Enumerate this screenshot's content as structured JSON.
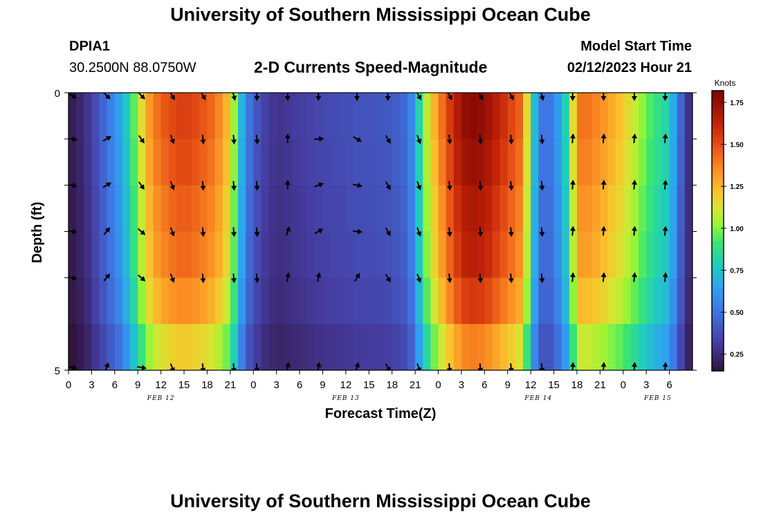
{
  "header": {
    "title": "University of Southern Mississippi Ocean Cube",
    "station": "DPIA1",
    "coordinates": "30.2500N  88.0750W",
    "subtitle": "2-D Currents Speed-Magnitude",
    "model_start_label": "Model Start Time",
    "model_start_value": "02/12/2023 Hour 21"
  },
  "footer": {
    "title": "University of Southern Mississippi Ocean Cube"
  },
  "chart_data": {
    "type": "heatmap",
    "title": "2-D Currents Speed-Magnitude",
    "xlabel": "Forecast Time(Z)",
    "ylabel": "Depth (ft)",
    "ylim": [
      0,
      5
    ],
    "y_tick_labels": [
      "0",
      "5"
    ],
    "x_hours_range": [
      0,
      81
    ],
    "x_tick_labels": [
      "0",
      "3",
      "6",
      "9",
      "12",
      "15",
      "18",
      "21",
      "0",
      "3",
      "6",
      "9",
      "12",
      "15",
      "18",
      "21",
      "0",
      "3",
      "6",
      "9",
      "12",
      "15",
      "18",
      "21",
      "0",
      "3",
      "6"
    ],
    "date_labels": [
      {
        "label": "FEB 12",
        "hour": 12
      },
      {
        "label": "FEB 13",
        "hour": 36
      },
      {
        "label": "FEB 14",
        "hour": 61
      },
      {
        "label": "FEB 15",
        "hour": 76.5
      }
    ],
    "colorbar": {
      "title": "Knots",
      "range": [
        0.15,
        1.82
      ],
      "ticks": [
        "0.25",
        "0.50",
        "0.75",
        "1.00",
        "1.25",
        "1.50",
        "1.75"
      ]
    },
    "speed_profile": {
      "hours": [
        0,
        2,
        5,
        7,
        8,
        9,
        10,
        11,
        12,
        13,
        15,
        17,
        19,
        21,
        22,
        23,
        25,
        27,
        30,
        33,
        36,
        38,
        40,
        42,
        44,
        45,
        46,
        48,
        50,
        51,
        52,
        54,
        56,
        59,
        60,
        61,
        62,
        63,
        64,
        65,
        66,
        67,
        69,
        72,
        74,
        76,
        78,
        79,
        80,
        81
      ],
      "knots": [
        0.18,
        0.25,
        0.5,
        0.68,
        0.85,
        1.05,
        1.25,
        1.38,
        1.45,
        1.5,
        1.55,
        1.5,
        1.42,
        1.2,
        0.85,
        0.55,
        0.35,
        0.28,
        0.32,
        0.36,
        0.38,
        0.4,
        0.4,
        0.42,
        0.48,
        0.65,
        0.98,
        1.35,
        1.62,
        1.72,
        1.78,
        1.75,
        1.62,
        1.42,
        0.9,
        0.55,
        0.48,
        0.55,
        0.7,
        0.9,
        1.4,
        1.42,
        1.35,
        1.2,
        1.05,
        0.9,
        0.8,
        0.55,
        0.35,
        0.2
      ]
    },
    "depth_scale": [
      1.0,
      0.98,
      0.95,
      0.93,
      0.88,
      0.78
    ],
    "vector_hours": [
      0,
      4.5,
      9,
      13,
      17,
      21,
      24,
      28,
      32,
      37,
      41,
      45,
      49,
      53,
      57,
      61,
      65,
      69,
      73,
      77
    ],
    "vector_rows": [
      [
        120,
        135,
        135,
        150,
        150,
        165,
        180,
        180,
        180,
        180,
        180,
        150,
        150,
        150,
        150,
        165,
        180,
        180,
        180,
        180
      ],
      [
        100,
        60,
        145,
        160,
        175,
        175,
        175,
        0,
        85,
        120,
        150,
        160,
        175,
        175,
        175,
        175,
        5,
        5,
        5,
        5
      ],
      [
        100,
        60,
        145,
        160,
        175,
        175,
        175,
        0,
        70,
        100,
        150,
        160,
        175,
        175,
        175,
        175,
        5,
        5,
        5,
        5
      ],
      [
        100,
        40,
        130,
        160,
        175,
        175,
        175,
        20,
        60,
        95,
        150,
        160,
        175,
        175,
        175,
        175,
        5,
        5,
        5,
        5
      ],
      [
        100,
        40,
        130,
        160,
        175,
        175,
        175,
        10,
        10,
        30,
        150,
        160,
        175,
        175,
        175,
        175,
        5,
        5,
        5,
        5
      ],
      [
        100,
        20,
        100,
        160,
        175,
        175,
        175,
        10,
        10,
        15,
        150,
        160,
        175,
        175,
        175,
        175,
        5,
        5,
        5,
        5
      ]
    ]
  }
}
